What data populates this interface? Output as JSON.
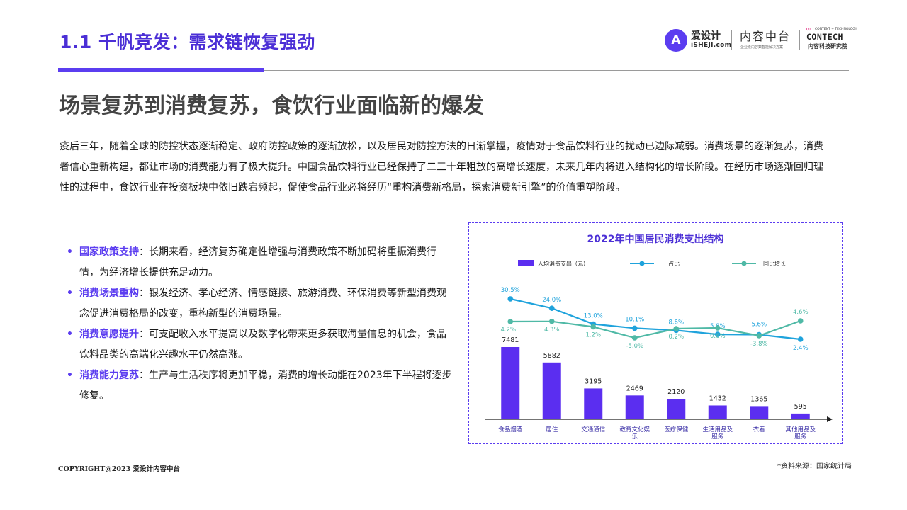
{
  "header": {
    "section_title": "1.1 千帆竞发：需求链恢复强劲",
    "brand": {
      "logo_glyph": "A",
      "logo_cn": "爱设计",
      "logo_en": "iSHEJI.com",
      "center_cn": "内容中台",
      "center_tiny": "企业级内容数智能解决方案",
      "right_tiny": "CONTENT + TECHNOLOGY",
      "right_big": "CONTECH",
      "right_sub": "内容科技研究院"
    }
  },
  "headline": "场景复苏到消费复苏，食饮行业面临新的爆发",
  "intro": "疫后三年，随着全球的防控状态逐渐稳定、政府防控政策的逐渐放松，以及居民对防控方法的日渐掌握，疫情对于食品饮料行业的扰动已边际减弱。消费场景的逐渐复苏，消费者信心重新构建，都让市场的消费能力有了极大提升。中国食品饮料行业已经保持了二三十年粗放的高增长速度，未来几年内将进入结构化的增长阶段。在经历市场逐渐回归理性的过程中，食饮行业在投资板块中依旧跌宕频起，促使食品行业必将经历“重构消费新格局，探索消费新引擎”的价值重塑阶段。",
  "bullets": [
    {
      "lead": "国家政策支持",
      "text": "：长期来看，经济复苏确定性增强与消费政策不断加码将重振消费行情，为经济增长提供充足动力。"
    },
    {
      "lead": "消费场景重构",
      "text": "：银发经济、孝心经济、情感链接、旅游消费、环保消费等新型消费观念促进消费格局的改变，重构新型的消费场景。"
    },
    {
      "lead": "消费意愿提升",
      "text": "：可支配收入水平提高以及数字化带来更多获取海量信息的机会，食品饮料品类的高端化兴趣水平仍然高涨。"
    },
    {
      "lead": "消费能力复苏",
      "text": "：生产与生活秩序将更加平稳，消费的增长动能在2023年下半程将逐步修复。"
    }
  ],
  "chart_data": {
    "type": "bar",
    "title": "2022年中国居民消费支出结构",
    "categories": [
      "食品烟酒",
      "居住",
      "交通通信",
      "教育文化娱乐",
      "医疗保健",
      "生活用品及服务",
      "衣着",
      "其他用品及服务"
    ],
    "category_lines": [
      [
        "食品烟酒"
      ],
      [
        "居住"
      ],
      [
        "交通通信"
      ],
      [
        "教育文化娱",
        "乐"
      ],
      [
        "医疗保健"
      ],
      [
        "生活用品及",
        "服务"
      ],
      [
        "衣着"
      ],
      [
        "其他用品及",
        "服务"
      ]
    ],
    "series": [
      {
        "name": "人均消费支出（元）",
        "kind": "bar",
        "color": "#5b2ef0",
        "values": [
          7481,
          5882,
          3195,
          2469,
          2120,
          1432,
          1365,
          595
        ]
      },
      {
        "name": "占比",
        "kind": "line",
        "color": "#1fa3dc",
        "values": [
          30.5,
          24.0,
          13.0,
          10.1,
          8.6,
          5.8,
          5.6,
          2.4
        ],
        "labels": [
          "30.5%",
          "24.0%",
          "13.0%",
          "10.1%",
          "8.6%",
          "5.8%",
          "5.6%",
          "2.4%"
        ]
      },
      {
        "name": "同比增长",
        "kind": "line",
        "color": "#4fb9a6",
        "values": [
          4.2,
          4.3,
          1.2,
          -5.0,
          0.2,
          0.6,
          -3.8,
          4.6
        ],
        "labels": [
          "4.2%",
          "4.3%",
          "1.2%",
          "-5.0%",
          "0.2%",
          "0.6%",
          "-3.8%",
          "4.6%"
        ]
      }
    ],
    "legend_placement": "top",
    "grid": false
  },
  "footer": {
    "copyright": "COPYRIGHT@2023 爱设计内容中台",
    "source": "*资料来源：国家统计局"
  }
}
